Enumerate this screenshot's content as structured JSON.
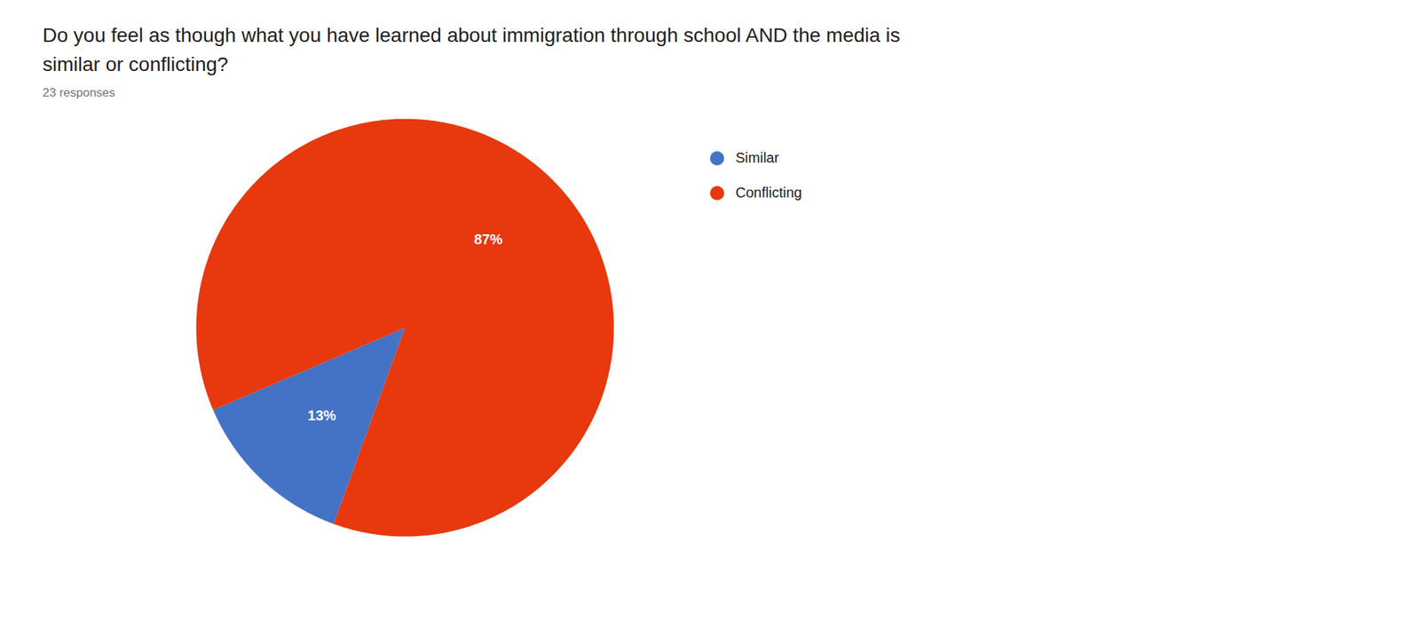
{
  "chart_data": {
    "type": "pie",
    "title": "Do you feel as though what you have learned about immigration through school AND the media is\nsimilar or conflicting?",
    "subtitle": "23 responses",
    "categories": [
      "Similar",
      "Conflicting"
    ],
    "values": [
      13,
      87
    ],
    "value_labels": [
      "13%",
      "87%"
    ],
    "colors": [
      "#4472C4",
      "#E8380D"
    ],
    "data_labels": true,
    "legend": "right"
  }
}
